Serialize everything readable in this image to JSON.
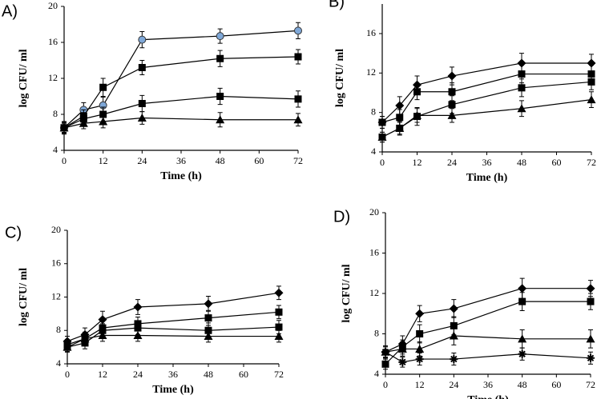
{
  "chart_data": [
    {
      "type": "line",
      "title": "A)",
      "x_label": "Time (h)",
      "y_label": "log CFU/ ml",
      "x": [
        0,
        6,
        12,
        24,
        48,
        72
      ],
      "xlim": [
        0,
        72
      ],
      "xticks": [
        0,
        12,
        24,
        36,
        48,
        60,
        72
      ],
      "ylim": [
        4,
        20
      ],
      "yticks": [
        4,
        8,
        12,
        16,
        20
      ],
      "series": [
        {
          "marker": "circle",
          "color": "#7fa8d8",
          "values": [
            6.5,
            8.5,
            9,
            16.3,
            16.7,
            17.3
          ],
          "errors": [
            0.7,
            0.8,
            0.9,
            0.9,
            0.8,
            0.9
          ]
        },
        {
          "marker": "square",
          "color": "#000000",
          "values": [
            6.5,
            7.8,
            11,
            13.2,
            14.2,
            14.4
          ],
          "errors": [
            0.6,
            0.7,
            1,
            0.8,
            0.9,
            0.8
          ]
        },
        {
          "marker": "square",
          "color": "#000000",
          "values": [
            6.5,
            7.5,
            8,
            9.2,
            10,
            9.7
          ],
          "errors": [
            0.6,
            0.7,
            0.8,
            0.9,
            0.9,
            0.9
          ]
        },
        {
          "marker": "triangle",
          "color": "#000000",
          "values": [
            6.5,
            7,
            7.2,
            7.6,
            7.4,
            7.4
          ],
          "errors": [
            0.5,
            0.6,
            0.7,
            0.7,
            0.8,
            0.7
          ]
        }
      ]
    },
    {
      "type": "line",
      "title": "B)",
      "x_label": "Time (h)",
      "y_label": "log CFU/ ml",
      "x": [
        0,
        6,
        12,
        24,
        48,
        72
      ],
      "xlim": [
        0,
        72
      ],
      "xticks": [
        0,
        12,
        24,
        36,
        48,
        60,
        72
      ],
      "ylim": [
        4,
        19
      ],
      "yticks": [
        4,
        8,
        12,
        16
      ],
      "series": [
        {
          "marker": "diamond",
          "color": "#000000",
          "values": [
            7,
            8.7,
            10.8,
            11.7,
            13,
            13
          ],
          "errors": [
            0.6,
            0.9,
            0.9,
            0.9,
            1,
            0.9
          ]
        },
        {
          "marker": "square",
          "color": "#000000",
          "values": [
            7,
            7.5,
            10.1,
            10.1,
            11.9,
            11.9
          ],
          "errors": [
            0.6,
            0.8,
            0.8,
            0.9,
            0.9,
            0.9
          ]
        },
        {
          "marker": "square",
          "color": "#000000",
          "values": [
            5.5,
            6.4,
            7.6,
            8.8,
            10.5,
            11.1
          ],
          "errors": [
            0.5,
            0.7,
            0.9,
            0.9,
            0.9,
            0.8
          ]
        },
        {
          "marker": "triangle",
          "color": "#000000",
          "values": [
            5.5,
            6.4,
            7.7,
            7.7,
            8.4,
            9.3
          ],
          "errors": [
            0.5,
            0.6,
            0.7,
            0.7,
            0.8,
            0.8
          ]
        }
      ]
    },
    {
      "type": "line",
      "title": "C)",
      "x_label": "Time (h)",
      "y_label": "log CFU/ ml",
      "x": [
        0,
        6,
        12,
        24,
        48,
        72
      ],
      "xlim": [
        0,
        72
      ],
      "xticks": [
        0,
        12,
        24,
        36,
        48,
        60,
        72
      ],
      "ylim": [
        4,
        20
      ],
      "yticks": [
        4,
        8,
        12,
        16,
        20
      ],
      "series": [
        {
          "marker": "diamond",
          "color": "#000000",
          "values": [
            6.7,
            7.5,
            9.3,
            10.8,
            11.2,
            12.5
          ],
          "errors": [
            0.6,
            0.8,
            1,
            0.9,
            0.9,
            0.8
          ]
        },
        {
          "marker": "square",
          "color": "#000000",
          "values": [
            6.3,
            7,
            8.3,
            8.8,
            9.5,
            10.2
          ],
          "errors": [
            0.6,
            0.8,
            0.9,
            0.8,
            0.9,
            0.8
          ]
        },
        {
          "marker": "square",
          "color": "#000000",
          "values": [
            6,
            6.5,
            8,
            8.3,
            8,
            8.4
          ],
          "errors": [
            0.6,
            0.7,
            0.8,
            0.8,
            0.9,
            0.8
          ]
        },
        {
          "marker": "triangle",
          "color": "#000000",
          "values": [
            6,
            7,
            7.4,
            7.4,
            7.3,
            7.3
          ],
          "errors": [
            0.5,
            0.7,
            0.7,
            0.7,
            0.7,
            0.7
          ]
        }
      ]
    },
    {
      "type": "line",
      "title": "D)",
      "x_label": "Time (h)",
      "y_label": "log CFU/ ml",
      "x": [
        0,
        6,
        12,
        24,
        48,
        72
      ],
      "xlim": [
        0,
        72
      ],
      "xticks": [
        0,
        12,
        24,
        36,
        48,
        60,
        72
      ],
      "ylim": [
        4,
        20
      ],
      "yticks": [
        4,
        8,
        12,
        16,
        20
      ],
      "series": [
        {
          "marker": "diamond",
          "color": "#000000",
          "values": [
            6.2,
            7,
            10,
            10.5,
            12.5,
            12.5
          ],
          "errors": [
            0.6,
            0.8,
            0.8,
            0.9,
            1,
            0.8
          ]
        },
        {
          "marker": "square",
          "color": "#000000",
          "values": [
            5,
            6.7,
            8,
            8.8,
            11.2,
            11.2
          ],
          "errors": [
            0.5,
            0.7,
            0.9,
            0.9,
            0.9,
            0.8
          ]
        },
        {
          "marker": "triangle",
          "color": "#000000",
          "values": [
            6.2,
            6.5,
            6.5,
            7.8,
            7.5,
            7.5
          ],
          "errors": [
            0.6,
            0.7,
            0.7,
            0.9,
            0.9,
            0.9
          ]
        },
        {
          "marker": "star",
          "color": "#000000",
          "values": [
            6.2,
            5.2,
            5.5,
            5.5,
            6,
            5.6
          ],
          "errors": [
            0.5,
            0.5,
            0.6,
            0.6,
            0.6,
            0.6
          ]
        }
      ]
    }
  ]
}
